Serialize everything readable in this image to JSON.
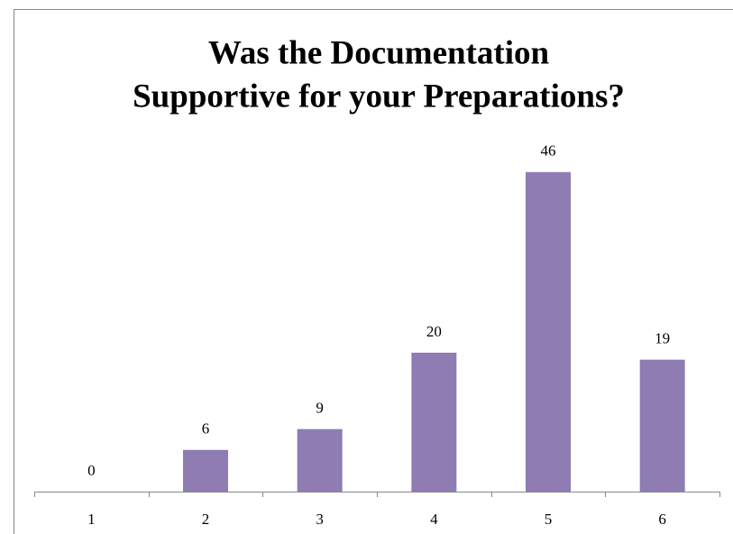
{
  "chart_data": {
    "type": "bar",
    "title": [
      "Was the Documentation",
      "Supportive for your Preparations?"
    ],
    "categories": [
      "1",
      "2",
      "3",
      "4",
      "5",
      "6"
    ],
    "values": [
      0,
      6,
      9,
      20,
      46,
      19
    ],
    "color": "#8e7cb3",
    "ylim": [
      0,
      50
    ]
  }
}
